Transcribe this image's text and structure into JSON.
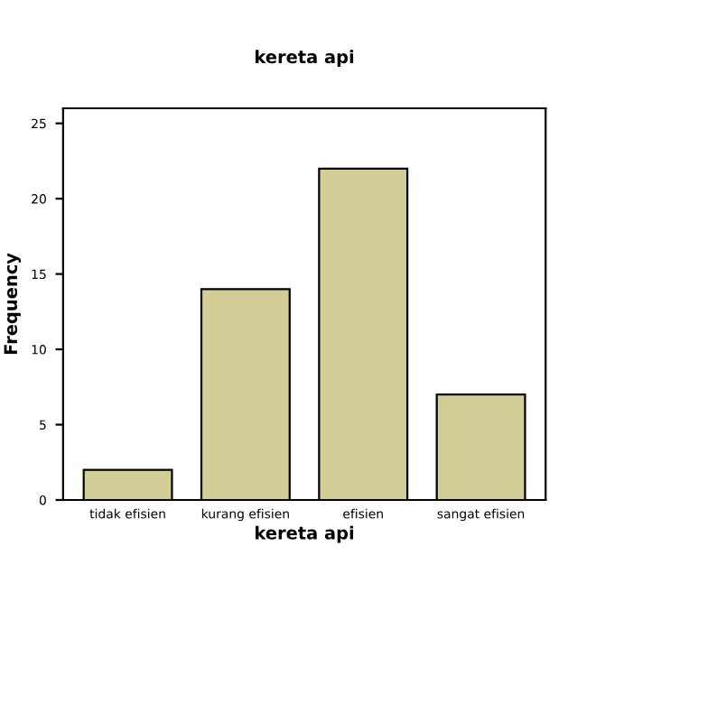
{
  "chart_data": {
    "type": "bar",
    "title": "kereta api",
    "xlabel": "kereta api",
    "ylabel": "Frequency",
    "categories": [
      "tidak efisien",
      "kurang efisien",
      "efisien",
      "sangat efisien"
    ],
    "values": [
      2,
      14,
      22,
      7
    ],
    "color": "#d3ce97",
    "ylim": [
      0,
      26
    ],
    "yticks": [
      0,
      5,
      10,
      15,
      20,
      25
    ],
    "grid": false
  }
}
